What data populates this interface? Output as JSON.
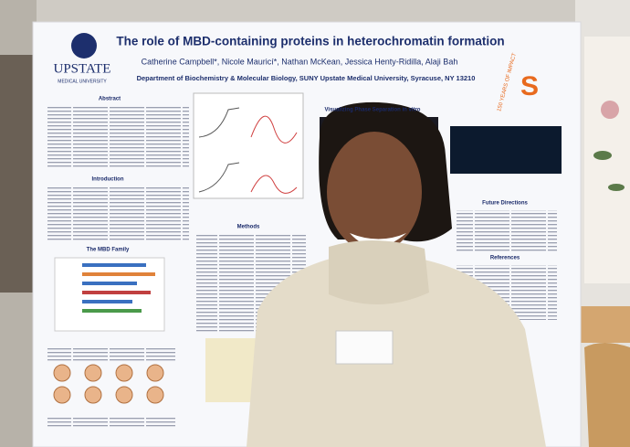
{
  "poster": {
    "logo": {
      "name": "UPSTATE",
      "subtitle": "MEDICAL UNIVERSITY"
    },
    "title": "The role of MBD-containing proteins in heterochromatin formation",
    "authors": "Catherine Campbell*, Nicole Mauricí*, Nathan McKean, Jessica Henty-Ridilla, Alaji Bah",
    "affiliation": "Department of Biochemistry & Molecular Biology, SUNY Upstate Medical University, Syracuse, NY 13210",
    "badge": {
      "letter": "S",
      "text": "150 YEARS OF IMPACT"
    },
    "sections": [
      "Abstract",
      "Introduction",
      "The MBD Family",
      "Methods",
      "Visualizing Phase Separation in vitro",
      "Future Directions",
      "References"
    ]
  }
}
